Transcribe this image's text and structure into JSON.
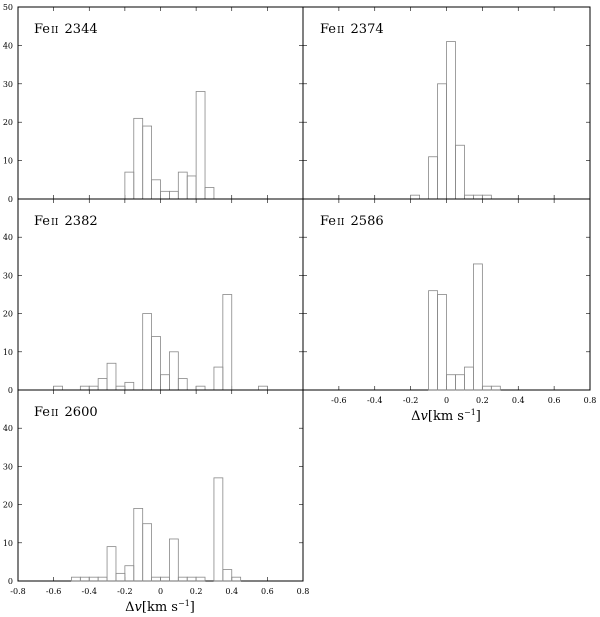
{
  "chart_data": [
    {
      "type": "bar",
      "label_prefix": "Fe",
      "label_ion": "II",
      "label_wave": "2344",
      "bin_width": 0.05,
      "bin_centers": [
        -0.175,
        -0.125,
        -0.075,
        -0.025,
        0.025,
        0.075,
        0.125,
        0.175,
        0.225,
        0.275,
        0.325
      ],
      "values": [
        7,
        21,
        19,
        5,
        2,
        2,
        7,
        6,
        28,
        3,
        0
      ],
      "xlim": [
        -0.8,
        0.8
      ],
      "ylim": [
        0,
        50
      ],
      "yticks": [
        "0",
        "10",
        "20",
        "30",
        "40",
        "50"
      ],
      "xlabel_shown": false
    },
    {
      "type": "bar",
      "label_prefix": "Fe",
      "label_ion": "II",
      "label_wave": "2374",
      "bin_width": 0.05,
      "bin_centers": [
        -0.175,
        -0.125,
        -0.075,
        -0.025,
        0.025,
        0.075,
        0.125,
        0.175,
        0.225
      ],
      "values": [
        1,
        0,
        11,
        30,
        41,
        14,
        1,
        1,
        1
      ],
      "xlim": [
        -0.8,
        0.8
      ],
      "ylim": [
        0,
        50
      ],
      "xlabel_shown": false
    },
    {
      "type": "bar",
      "label_prefix": "Fe",
      "label_ion": "II",
      "label_wave": "2382",
      "bin_width": 0.05,
      "bin_centers": [
        -0.575,
        -0.425,
        -0.375,
        -0.325,
        -0.275,
        -0.225,
        -0.175,
        -0.125,
        -0.075,
        -0.025,
        0.025,
        0.075,
        0.125,
        0.175,
        0.225,
        0.275,
        0.325,
        0.375,
        0.425,
        0.575
      ],
      "values": [
        1,
        1,
        1,
        3,
        7,
        1,
        2,
        0,
        20,
        14,
        4,
        10,
        3,
        0,
        1,
        0,
        6,
        25,
        0,
        1
      ],
      "xlim": [
        -0.8,
        0.8
      ],
      "ylim": [
        0,
        50
      ],
      "yticks": [
        "0",
        "10",
        "20",
        "30",
        "40"
      ],
      "xlabel_shown": false
    },
    {
      "type": "bar",
      "label_prefix": "Fe",
      "label_ion": "II",
      "label_wave": "2586",
      "bin_width": 0.05,
      "bin_centers": [
        -0.075,
        -0.025,
        0.025,
        0.075,
        0.125,
        0.175,
        0.225,
        0.275
      ],
      "values": [
        26,
        25,
        4,
        4,
        6,
        33,
        1,
        1
      ],
      "xlim": [
        -0.8,
        0.8
      ],
      "ylim": [
        0,
        50
      ],
      "xticks": [
        "-0.6",
        "-0.4",
        "-0.2",
        "0",
        "0.2",
        "0.4",
        "0.6",
        "0.8"
      ],
      "xlabel_shown": true
    },
    {
      "type": "bar",
      "label_prefix": "Fe",
      "label_ion": "II",
      "label_wave": "2600",
      "bin_width": 0.05,
      "bin_centers": [
        -0.475,
        -0.425,
        -0.375,
        -0.325,
        -0.275,
        -0.225,
        -0.175,
        -0.125,
        -0.075,
        -0.025,
        0.025,
        0.075,
        0.125,
        0.175,
        0.225,
        0.275,
        0.325,
        0.375,
        0.425
      ],
      "values": [
        1,
        1,
        1,
        1,
        9,
        2,
        4,
        19,
        15,
        1,
        1,
        11,
        1,
        1,
        1,
        0,
        27,
        3,
        1
      ],
      "xlim": [
        -0.8,
        0.8
      ],
      "ylim": [
        0,
        50
      ],
      "yticks": [
        "0",
        "10",
        "20",
        "30",
        "40"
      ],
      "xticks": [
        "-0.8",
        "-0.6",
        "-0.4",
        "-0.2",
        "0",
        "0.2",
        "0.4",
        "0.6",
        "0.8"
      ],
      "xlabel_shown": true
    }
  ],
  "xlabel": {
    "delta": "Δ",
    "v": "v",
    "units_open": "[km s",
    "exponent": "−1",
    "units_close": "]"
  }
}
